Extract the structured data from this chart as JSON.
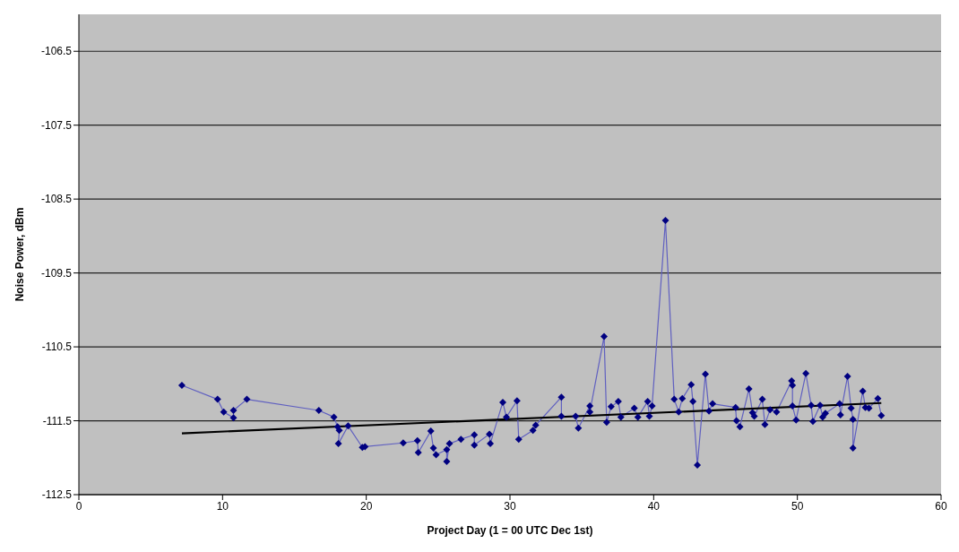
{
  "chart_data": {
    "type": "line",
    "xlabel": "Project Day (1 = 00 UTC Dec 1st)",
    "ylabel": "Noise Power, dBm",
    "xlim": [
      0,
      60
    ],
    "xticks": [
      0,
      10,
      20,
      30,
      40,
      50,
      60
    ],
    "ylim": [
      -112.5,
      -106
    ],
    "yticks": [
      -112.5,
      -111.5,
      -110.5,
      -109.5,
      -108.5,
      -107.5,
      -106.5
    ],
    "grid": "y",
    "legend": false,
    "line_style": "solid",
    "series": [
      {
        "color": "#000080",
        "marker": "diamond",
        "x": [
          7.17,
          9.65,
          10.08,
          10.76,
          10.76,
          11.69,
          16.7,
          17.75,
          18.0,
          18.12,
          18.06,
          18.74,
          19.73,
          19.91,
          22.57,
          23.56,
          23.62,
          24.49,
          24.67,
          24.86,
          25.6,
          25.6,
          25.79,
          26.59,
          27.52,
          27.52,
          28.57,
          28.63,
          29.5,
          29.75,
          30.49,
          30.61,
          31.6,
          31.79,
          33.58,
          33.58,
          34.57,
          34.76,
          35.56,
          35.56,
          36.55,
          36.73,
          37.04,
          37.54,
          37.72,
          38.65,
          38.9,
          39.58,
          39.7,
          39.89,
          40.82,
          41.43,
          41.74,
          41.99,
          42.61,
          42.73,
          43.04,
          43.6,
          43.85,
          44.1,
          45.7,
          45.76,
          46.0,
          46.63,
          46.88,
          47.0,
          47.56,
          47.74,
          48.1,
          48.55,
          49.6,
          49.66,
          49.66,
          49.91,
          50.59,
          50.96,
          51.08,
          51.58,
          51.76,
          51.95,
          52.94,
          53.0,
          53.49,
          53.74,
          53.87,
          53.87,
          54.55,
          54.73,
          54.98,
          55.6,
          55.84
        ],
        "values": [
          -111.02,
          -111.21,
          -111.38,
          -111.46,
          -111.36,
          -111.21,
          -111.36,
          -111.45,
          -111.58,
          -111.63,
          -111.81,
          -111.57,
          -111.86,
          -111.85,
          -111.8,
          -111.77,
          -111.93,
          -111.64,
          -111.87,
          -111.96,
          -111.89,
          -112.05,
          -111.81,
          -111.75,
          -111.69,
          -111.83,
          -111.68,
          -111.81,
          -111.25,
          -111.45,
          -111.23,
          -111.75,
          -111.63,
          -111.56,
          -111.18,
          -111.44,
          -111.44,
          -111.6,
          -111.3,
          -111.38,
          -110.36,
          -111.52,
          -111.31,
          -111.24,
          -111.45,
          -111.33,
          -111.45,
          -111.24,
          -111.44,
          -111.3,
          -108.79,
          -111.21,
          -111.38,
          -111.2,
          -111.01,
          -111.24,
          -112.1,
          -110.87,
          -111.37,
          -111.27,
          -111.32,
          -111.5,
          -111.58,
          -111.07,
          -111.39,
          -111.44,
          -111.21,
          -111.55,
          -111.35,
          -111.38,
          -110.96,
          -111.02,
          -111.3,
          -111.49,
          -110.86,
          -111.29,
          -111.51,
          -111.29,
          -111.45,
          -111.4,
          -111.27,
          -111.42,
          -110.9,
          -111.33,
          -111.48,
          -111.87,
          -111.1,
          -111.32,
          -111.33,
          -111.2,
          -111.43
        ]
      },
      {
        "color": "#000000",
        "marker": "none",
        "x": [
          7.17,
          55.84
        ],
        "values": [
          -111.67,
          -111.26
        ]
      }
    ]
  }
}
